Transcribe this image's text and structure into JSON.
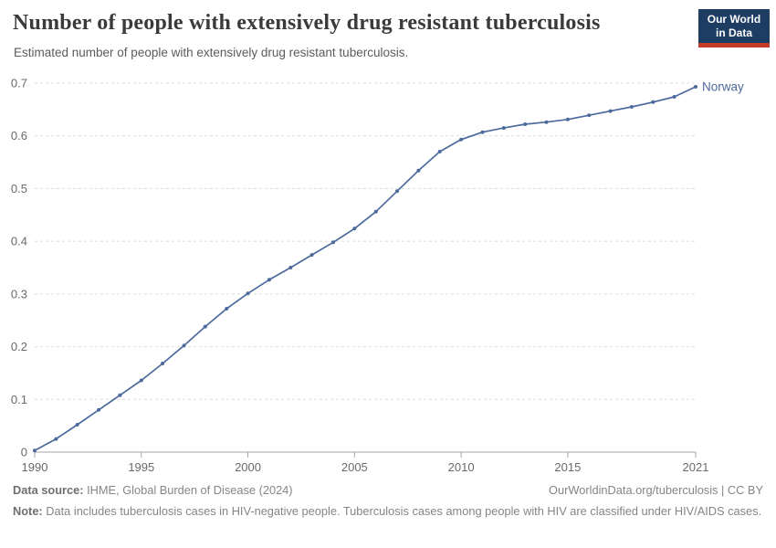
{
  "header": {
    "title": "Number of people with extensively drug resistant tuberculosis",
    "subtitle": "Estimated number of people with extensively drug resistant tuberculosis.",
    "logo": {
      "line1": "Our World",
      "line2": "in Data",
      "navy": "#1d3d63",
      "red": "#c53b2a"
    }
  },
  "chart_data": {
    "type": "line",
    "title": "Number of people with extensively drug resistant tuberculosis",
    "xlabel": "",
    "ylabel": "",
    "x": [
      1990,
      1991,
      1992,
      1993,
      1994,
      1995,
      1996,
      1997,
      1998,
      1999,
      2000,
      2001,
      2002,
      2003,
      2004,
      2005,
      2006,
      2007,
      2008,
      2009,
      2010,
      2011,
      2012,
      2013,
      2014,
      2015,
      2016,
      2017,
      2018,
      2019,
      2020,
      2021
    ],
    "series": [
      {
        "name": "Norway",
        "color": "#4C6A9C",
        "values": [
          0.003,
          0.025,
          0.052,
          0.08,
          0.108,
          0.136,
          0.168,
          0.202,
          0.238,
          0.272,
          0.301,
          0.327,
          0.35,
          0.374,
          0.398,
          0.424,
          0.456,
          0.495,
          0.534,
          0.57,
          0.593,
          0.607,
          0.615,
          0.622,
          0.626,
          0.631,
          0.639,
          0.647,
          0.655,
          0.664,
          0.674,
          0.693
        ]
      }
    ],
    "xlim": [
      1990,
      2021
    ],
    "ylim": [
      0,
      0.7
    ],
    "xticks": [
      1990,
      1995,
      2000,
      2005,
      2010,
      2015,
      2021
    ],
    "yticks": [
      0,
      0.1,
      0.2,
      0.3,
      0.4,
      0.5,
      0.6,
      0.7
    ],
    "grid": true,
    "legend_position": "end-of-line-label",
    "end_label": "Norway",
    "grid_color": "#dcdcdc",
    "axis_color": "#a5a5a5",
    "tick_label_color": "#696969"
  },
  "footer": {
    "data_source_label": "Data source:",
    "data_source_text": " IHME, Global Burden of Disease (2024)",
    "link": "OurWorldinData.org/tuberculosis | CC BY",
    "note_label": "Note:",
    "note_text": " Data includes tuberculosis cases in HIV-negative people. Tuberculosis cases among people with HIV are classified under HIV/AIDS cases."
  }
}
